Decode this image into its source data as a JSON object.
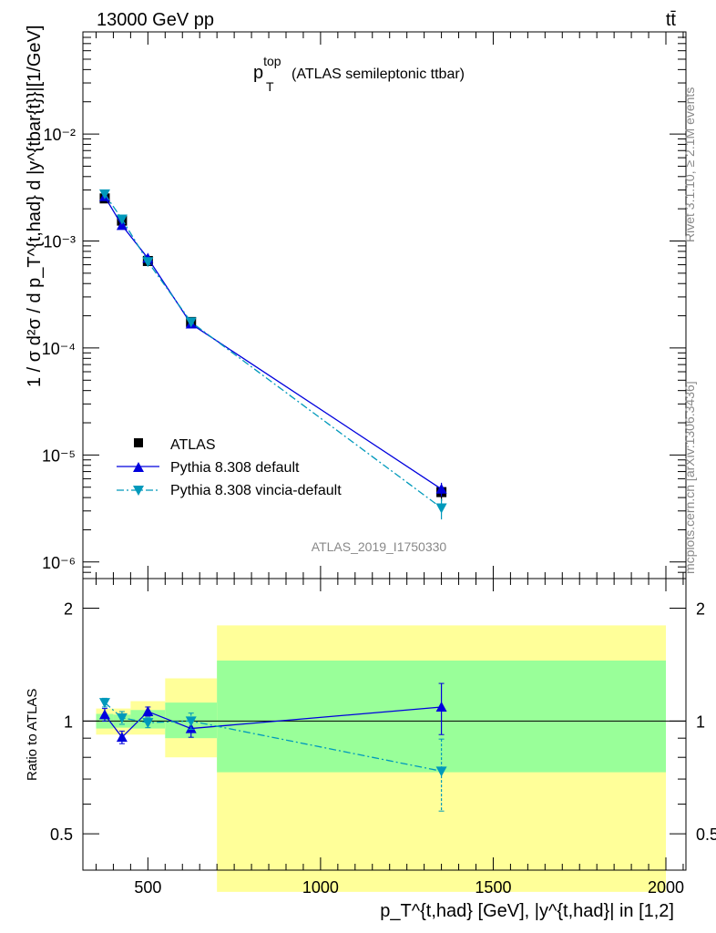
{
  "header": {
    "energy": "13000 GeV pp",
    "process": "tt̄",
    "plot_title_main": "p",
    "plot_title_sup": "top",
    "plot_title_sub": "T",
    "plot_title_tail": "(ATLAS semileptonic ttbar)",
    "watermark": "ATLAS_2019_I1750330",
    "side_rivet": "Rivet 3.1.10, ≥ 2.1M events",
    "side_mcplots": "mcplots.cern.ch [arXiv:1306.3436]"
  },
  "axes": {
    "ylabel_main": "1 / σ d²σ / d p_T^{t,had} d |y^{tbar{t}}|[1/GeV]",
    "ylabel_ratio": "Ratio to ATLAS",
    "xlabel": "p_T^{t,had} [GeV], |y^{t,had}| in [1,2]",
    "x_ticks": [
      "500",
      "1000",
      "1500",
      "2000"
    ],
    "y_ticks_main": [
      "10⁻⁶",
      "10⁻⁵",
      "10⁻⁴",
      "10⁻³",
      "10⁻²"
    ],
    "y_ticks_ratio": [
      "0.5",
      "1",
      "2"
    ]
  },
  "legend": {
    "atlas": "ATLAS",
    "pythia_default": "Pythia 8.308 default",
    "pythia_vincia": "Pythia 8.308 vincia-default"
  },
  "colors": {
    "atlas": "#000000",
    "pythia_default": "#0000dd",
    "pythia_vincia": "#0099bb",
    "band_inner": "#99ff99",
    "band_outer": "#ffff99"
  },
  "chart_data": [
    {
      "type": "scatter",
      "panel": "main",
      "xlim": [
        325,
        2050
      ],
      "ylim": [
        7e-07,
        0.09
      ],
      "yscale": "log",
      "grid": false,
      "legend_position": "bottom-left",
      "series": [
        {
          "name": "ATLAS",
          "style": "markers",
          "x": [
            375,
            425,
            500,
            625,
            1350
          ],
          "y": [
            0.0025,
            0.00155,
            0.00065,
            0.000175,
            4.5e-06
          ],
          "yerr": [
            0.0001,
            7e-05,
            3e-05,
            1e-05,
            8e-07
          ]
        },
        {
          "name": "Pythia 8.308 default",
          "style": "solid-triangle-up",
          "x": [
            375,
            425,
            500,
            625,
            1350
          ],
          "y": [
            0.0026,
            0.0014,
            0.00069,
            0.000168,
            4.8e-06
          ],
          "yerr": [
            5e-05,
            4e-05,
            2e-05,
            5e-06,
            7e-07
          ]
        },
        {
          "name": "Pythia 8.308 vincia-default",
          "style": "dashdot-triangle-down",
          "x": [
            375,
            425,
            500,
            625,
            1350
          ],
          "y": [
            0.00275,
            0.0016,
            0.00064,
            0.000175,
            3.2e-06
          ],
          "yerr": [
            5e-05,
            4e-05,
            2e-05,
            5e-06,
            7e-07
          ]
        }
      ]
    },
    {
      "type": "scatter",
      "panel": "ratio",
      "xlim": [
        325,
        2050
      ],
      "ylim": [
        0.4,
        2.4
      ],
      "yscale": "log",
      "reference_line": 1,
      "bands": {
        "edges": [
          350,
          400,
          450,
          550,
          700,
          2000
        ],
        "inner_low": [
          0.955,
          0.96,
          0.955,
          0.9,
          0.73
        ],
        "inner_high": [
          1.045,
          1.04,
          1.07,
          1.12,
          1.45
        ],
        "outer_low": [
          0.92,
          0.92,
          0.92,
          0.8,
          0.35
        ],
        "outer_high": [
          1.08,
          1.08,
          1.13,
          1.3,
          1.8
        ]
      },
      "series": [
        {
          "name": "Pythia 8.308 default",
          "x": [
            375,
            425,
            500,
            625,
            1350
          ],
          "y": [
            1.04,
            0.905,
            1.06,
            0.955,
            1.09
          ],
          "yerr": [
            0.04,
            0.035,
            0.03,
            0.05,
            0.17
          ]
        },
        {
          "name": "Pythia 8.308 vincia-default",
          "x": [
            375,
            425,
            500,
            625,
            1350
          ],
          "y": [
            1.12,
            1.02,
            0.99,
            1.0,
            0.735
          ],
          "yerr": [
            0.03,
            0.04,
            0.03,
            0.05,
            0.16
          ]
        }
      ]
    }
  ]
}
